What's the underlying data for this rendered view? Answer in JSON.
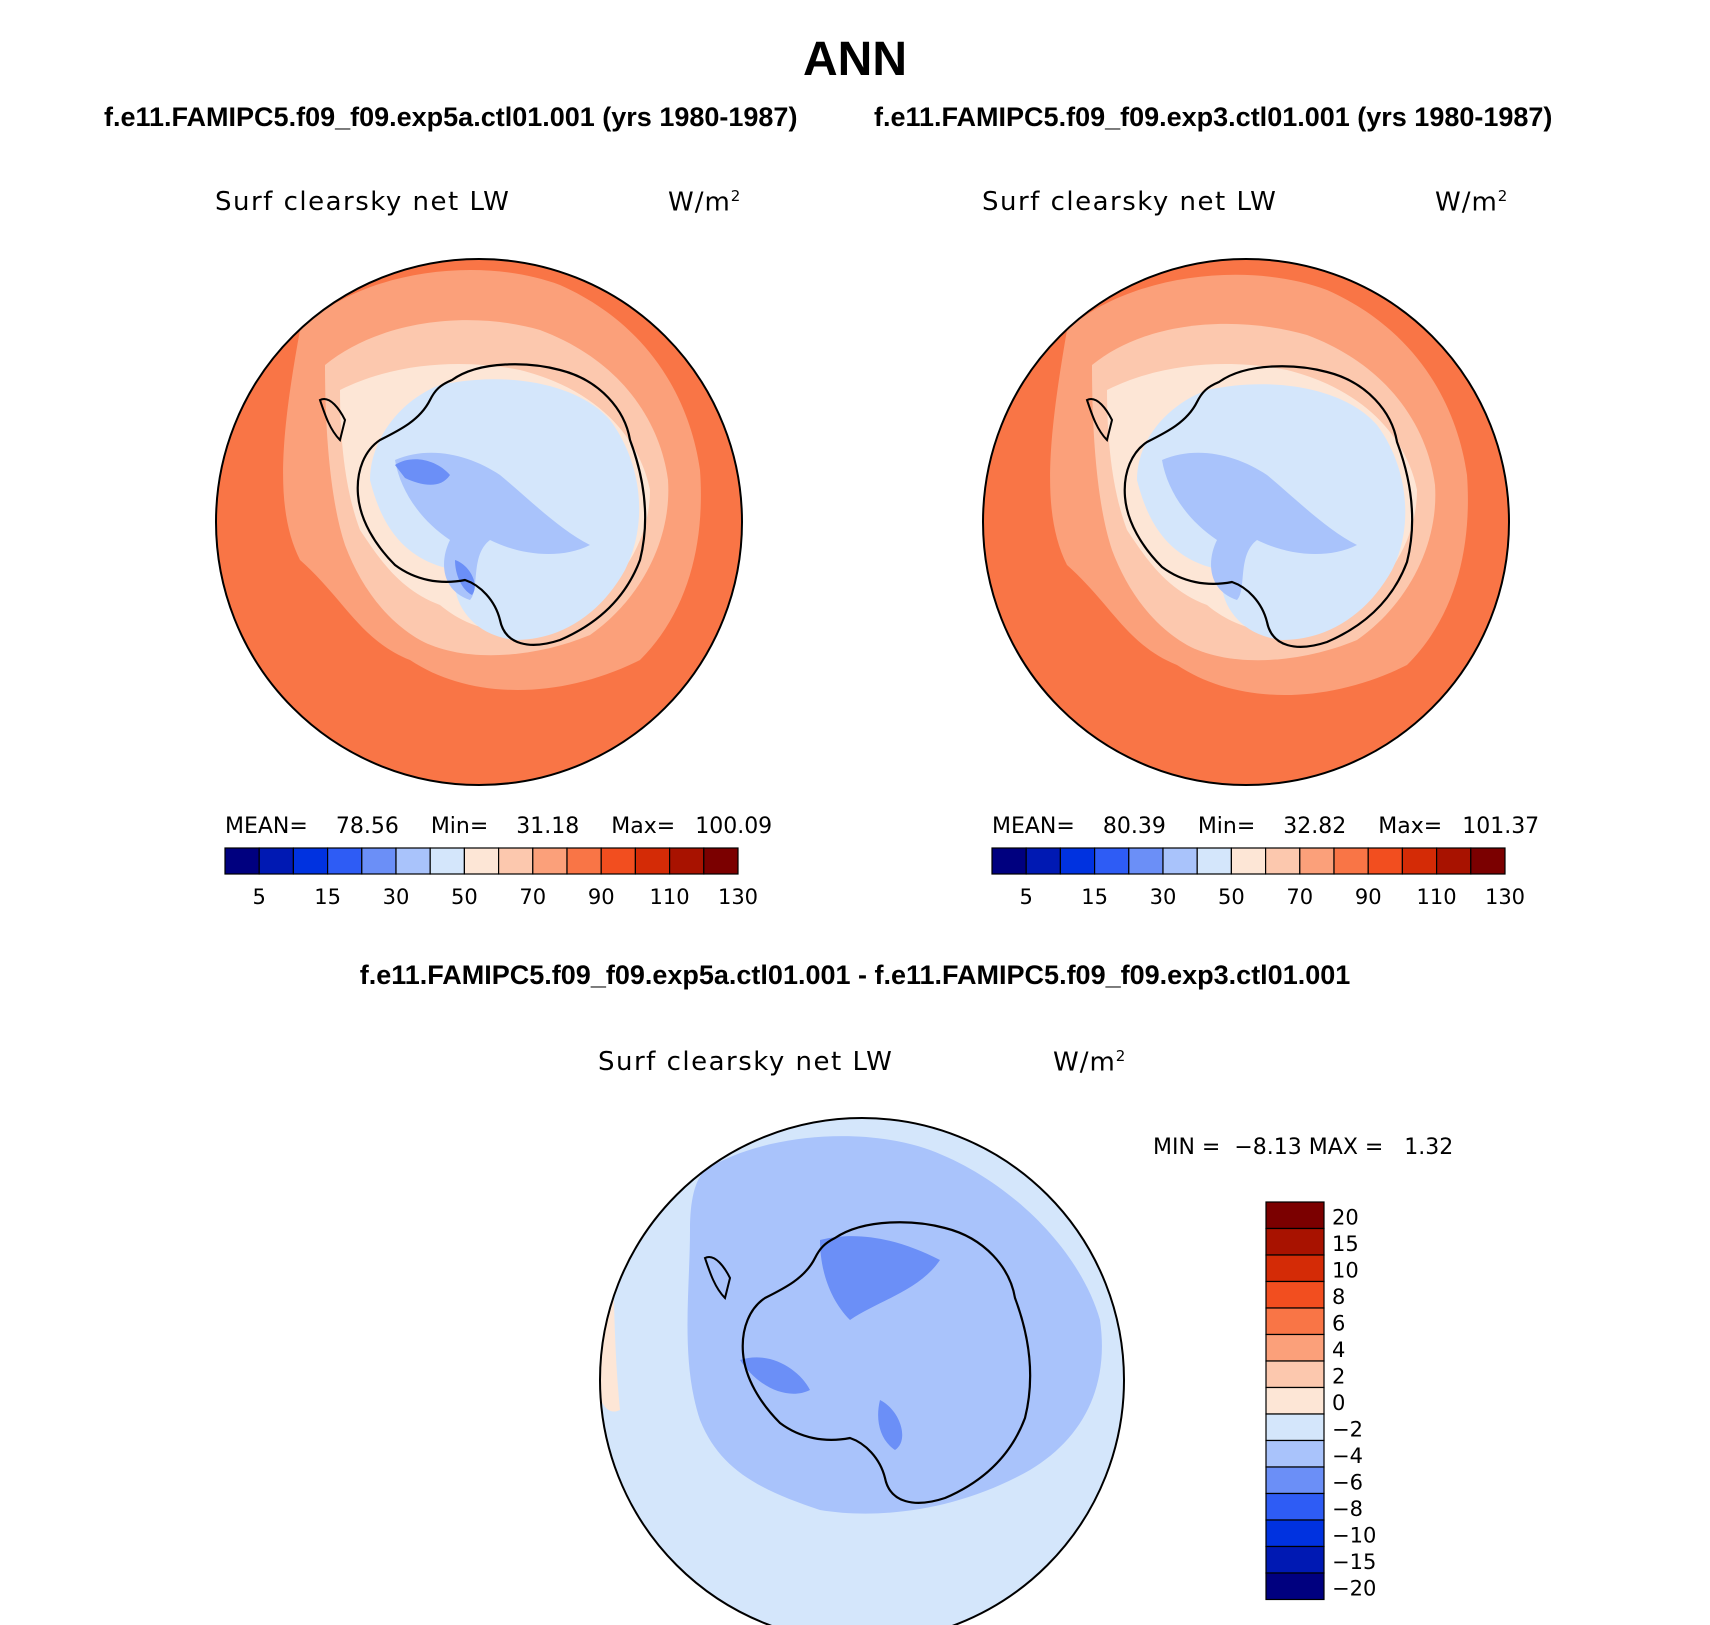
{
  "title": "ANN",
  "panels": [
    {
      "case_title": "f.e11.FAMIPC5.f09_f09.exp5a.ctl01.001 (yrs 1980-1987)",
      "variable": "Surf clearsky net LW",
      "units_base": "W/m",
      "units_exp": "2",
      "mean_label": "MEAN=",
      "mean": "78.56",
      "min_label": "Min=",
      "min": "31.18",
      "max_label": "Max=",
      "max": "100.09"
    },
    {
      "case_title": "f.e11.FAMIPC5.f09_f09.exp3.ctl01.001 (yrs 1980-1987)",
      "variable": "Surf clearsky net LW",
      "units_base": "W/m",
      "units_exp": "2",
      "mean_label": "MEAN=",
      "mean": "80.39",
      "min_label": "Min=",
      "min": "32.82",
      "max_label": "Max=",
      "max": "101.37"
    }
  ],
  "difference": {
    "title": "f.e11.FAMIPC5.f09_f09.exp5a.ctl01.001 - f.e11.FAMIPC5.f09_f09.exp3.ctl01.001",
    "variable": "Surf clearsky net LW",
    "units_base": "W/m",
    "units_exp": "2",
    "min_label": "MIN =",
    "min": "−8.13",
    "max_label": "MAX =",
    "max": "1.32"
  },
  "colorbars": {
    "absolute": {
      "colors": [
        "#00007f",
        "#0019b3",
        "#0032e0",
        "#2e5cf5",
        "#6b8ff7",
        "#a9c3fb",
        "#d4e6fb",
        "#fde6d6",
        "#fcc8ae",
        "#fba07a",
        "#f97546",
        "#f24e1f",
        "#d42b06",
        "#a81200",
        "#7b0000"
      ],
      "labels": [
        "5",
        "15",
        "30",
        "50",
        "70",
        "90",
        "110",
        "130"
      ]
    },
    "difference": {
      "colors_top_to_bottom": [
        "#7b0000",
        "#a81200",
        "#d42b06",
        "#f24e1f",
        "#f97546",
        "#fba07a",
        "#fcc8ae",
        "#fde6d6",
        "#d4e6fb",
        "#a9c3fb",
        "#6b8ff7",
        "#2e5cf5",
        "#0032e0",
        "#0019b3",
        "#00007f"
      ],
      "labels_top_to_bottom": [
        "20",
        "15",
        "10",
        "8",
        "6",
        "4",
        "2",
        "0",
        "−2",
        "−4",
        "−6",
        "−8",
        "−10",
        "−15",
        "−20"
      ]
    }
  },
  "chart_data": [
    {
      "type": "heatmap",
      "projection": "south polar stereographic",
      "title": "Surf clearsky net LW",
      "units": "W/m2",
      "case": "f.e11.FAMIPC5.f09_f09.exp5a.ctl01.001 (yrs 1980-1987)",
      "mean": 78.56,
      "min": 31.18,
      "max": 100.09,
      "contour_levels": [
        5,
        10,
        15,
        20,
        30,
        40,
        50,
        60,
        70,
        80,
        90,
        100,
        110,
        120,
        130
      ]
    },
    {
      "type": "heatmap",
      "projection": "south polar stereographic",
      "title": "Surf clearsky net LW",
      "units": "W/m2",
      "case": "f.e11.FAMIPC5.f09_f09.exp3.ctl01.001 (yrs 1980-1987)",
      "mean": 80.39,
      "min": 32.82,
      "max": 101.37,
      "contour_levels": [
        5,
        10,
        15,
        20,
        30,
        40,
        50,
        60,
        70,
        80,
        90,
        100,
        110,
        120,
        130
      ]
    },
    {
      "type": "heatmap",
      "projection": "south polar stereographic",
      "title": "Surf clearsky net LW (difference)",
      "units": "W/m2",
      "min": -8.13,
      "max": 1.32,
      "contour_levels": [
        -20,
        -15,
        -10,
        -8,
        -6,
        -4,
        -2,
        0,
        2,
        4,
        6,
        8,
        10,
        15,
        20
      ]
    }
  ]
}
